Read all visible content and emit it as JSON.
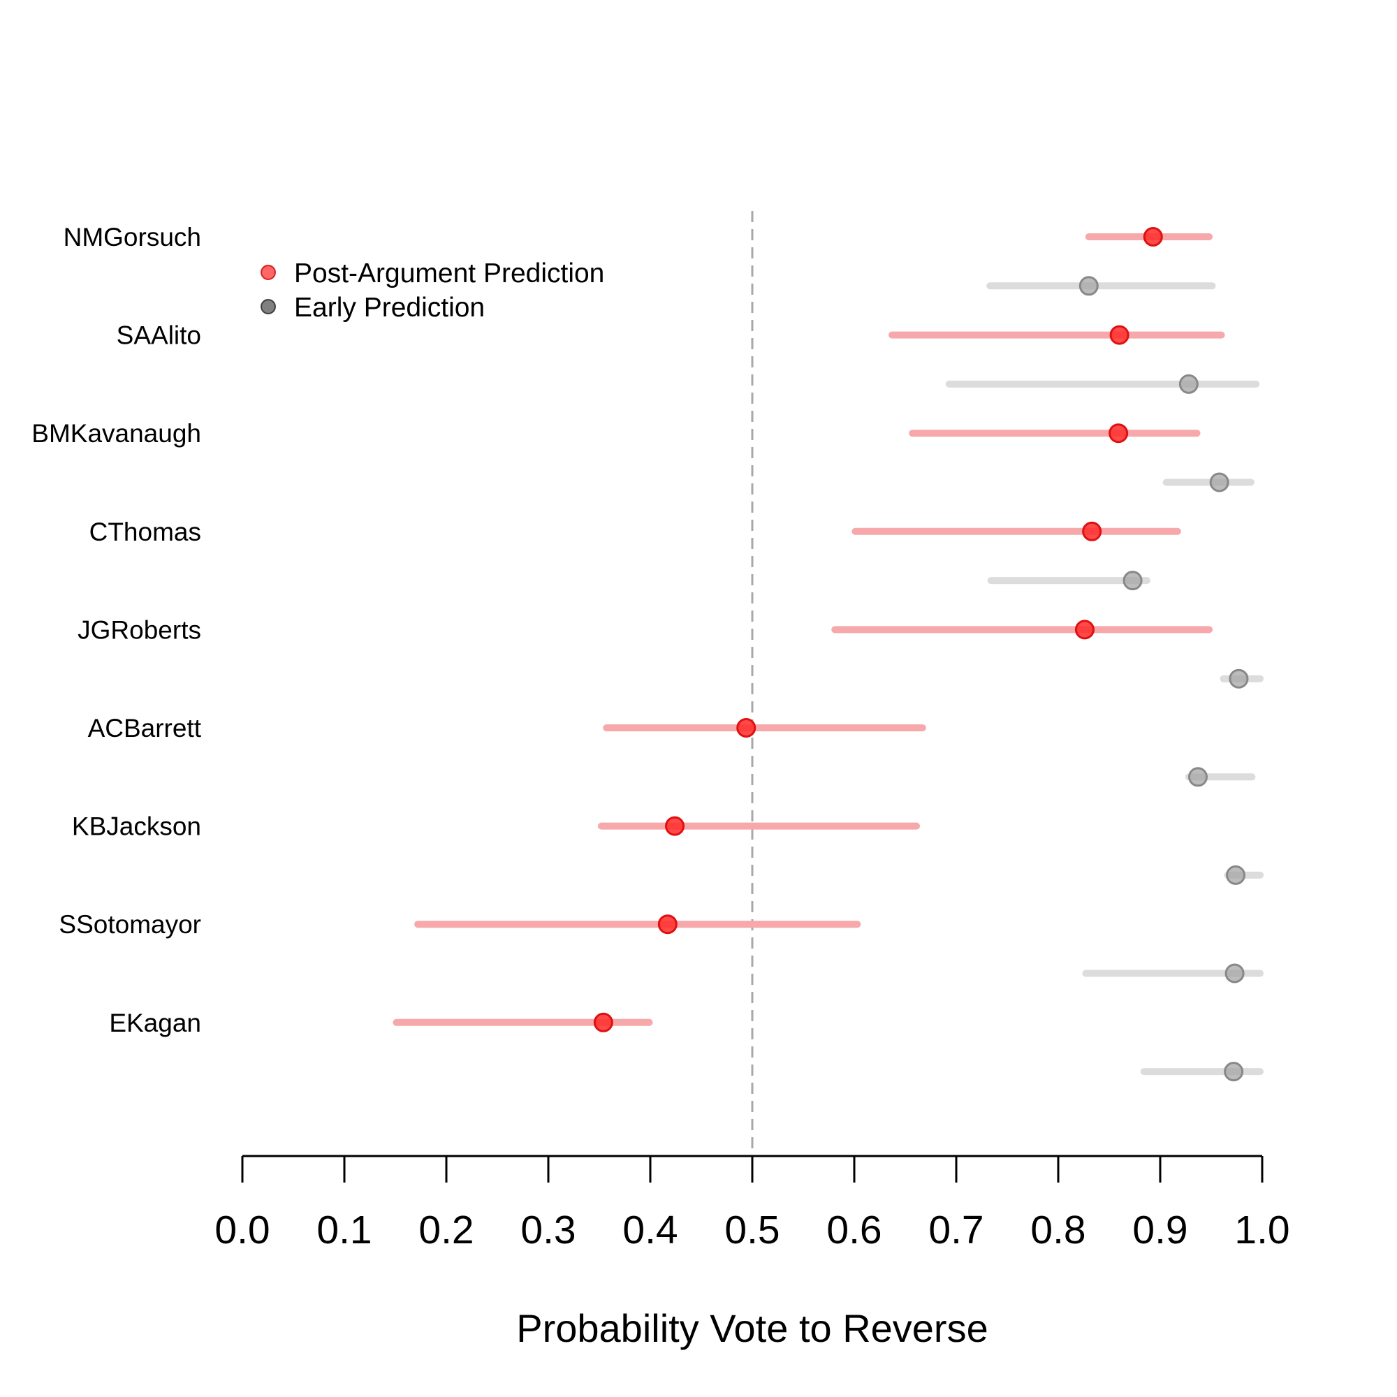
{
  "chart_data": {
    "type": "dot-interval",
    "xlabel": "Probability Vote to Reverse",
    "xlim": [
      0.0,
      1.0
    ],
    "x_ticks": [
      "0.0",
      "0.1",
      "0.2",
      "0.3",
      "0.4",
      "0.5",
      "0.6",
      "0.7",
      "0.8",
      "0.9",
      "1.0"
    ],
    "x_tick_values": [
      0.0,
      0.1,
      0.2,
      0.3,
      0.4,
      0.5,
      0.6,
      0.7,
      0.8,
      0.9,
      1.0
    ],
    "reference_line": 0.5,
    "legend": {
      "placement": "top-left",
      "entries": [
        {
          "label": "Post-Argument Prediction",
          "color": "#ff0000"
        },
        {
          "label": "Early Prediction",
          "color": "#555555"
        }
      ]
    },
    "justices": [
      "NMGorsuch",
      "SAAlito",
      "BMKavanaugh",
      "CThomas",
      "JGRoberts",
      "ACBarrett",
      "KBJackson",
      "SSotomayor",
      "EKagan"
    ],
    "series": [
      {
        "name": "Post-Argument Prediction",
        "color": "#ff0000",
        "interval_color": "#f7a8aa",
        "points": [
          {
            "label": "NMGorsuch",
            "estimate": 0.893,
            "low": 0.83,
            "high": 0.948
          },
          {
            "label": "SAAlito",
            "estimate": 0.86,
            "low": 0.637,
            "high": 0.96
          },
          {
            "label": "BMKavanaugh",
            "estimate": 0.859,
            "low": 0.657,
            "high": 0.936
          },
          {
            "label": "CThomas",
            "estimate": 0.833,
            "low": 0.601,
            "high": 0.917
          },
          {
            "label": "JGRoberts",
            "estimate": 0.826,
            "low": 0.581,
            "high": 0.948
          },
          {
            "label": "ACBarrett",
            "estimate": 0.494,
            "low": 0.357,
            "high": 0.667
          },
          {
            "label": "KBJackson",
            "estimate": 0.424,
            "low": 0.352,
            "high": 0.661
          },
          {
            "label": "SSotomayor",
            "estimate": 0.417,
            "low": 0.172,
            "high": 0.603
          },
          {
            "label": "EKagan",
            "estimate": 0.354,
            "low": 0.151,
            "high": 0.399
          }
        ]
      },
      {
        "name": "Early Prediction",
        "color": "#888888",
        "interval_color": "#dcdcdc",
        "points": [
          {
            "label": "NMGorsuch",
            "estimate": 0.83,
            "low": 0.733,
            "high": 0.951
          },
          {
            "label": "SAAlito",
            "estimate": 0.928,
            "low": 0.693,
            "high": 0.994
          },
          {
            "label": "BMKavanaugh",
            "estimate": 0.958,
            "low": 0.906,
            "high": 0.989
          },
          {
            "label": "CThomas",
            "estimate": 0.873,
            "low": 0.734,
            "high": 0.887
          },
          {
            "label": "JGRoberts",
            "estimate": 0.977,
            "low": 0.962,
            "high": 0.998
          },
          {
            "label": "ACBarrett",
            "estimate": 0.937,
            "low": 0.928,
            "high": 0.99
          },
          {
            "label": "KBJackson",
            "estimate": 0.974,
            "low": 0.966,
            "high": 0.998
          },
          {
            "label": "SSotomayor",
            "estimate": 0.973,
            "low": 0.827,
            "high": 0.998
          },
          {
            "label": "EKagan",
            "estimate": 0.972,
            "low": 0.884,
            "high": 0.998
          }
        ]
      }
    ]
  }
}
